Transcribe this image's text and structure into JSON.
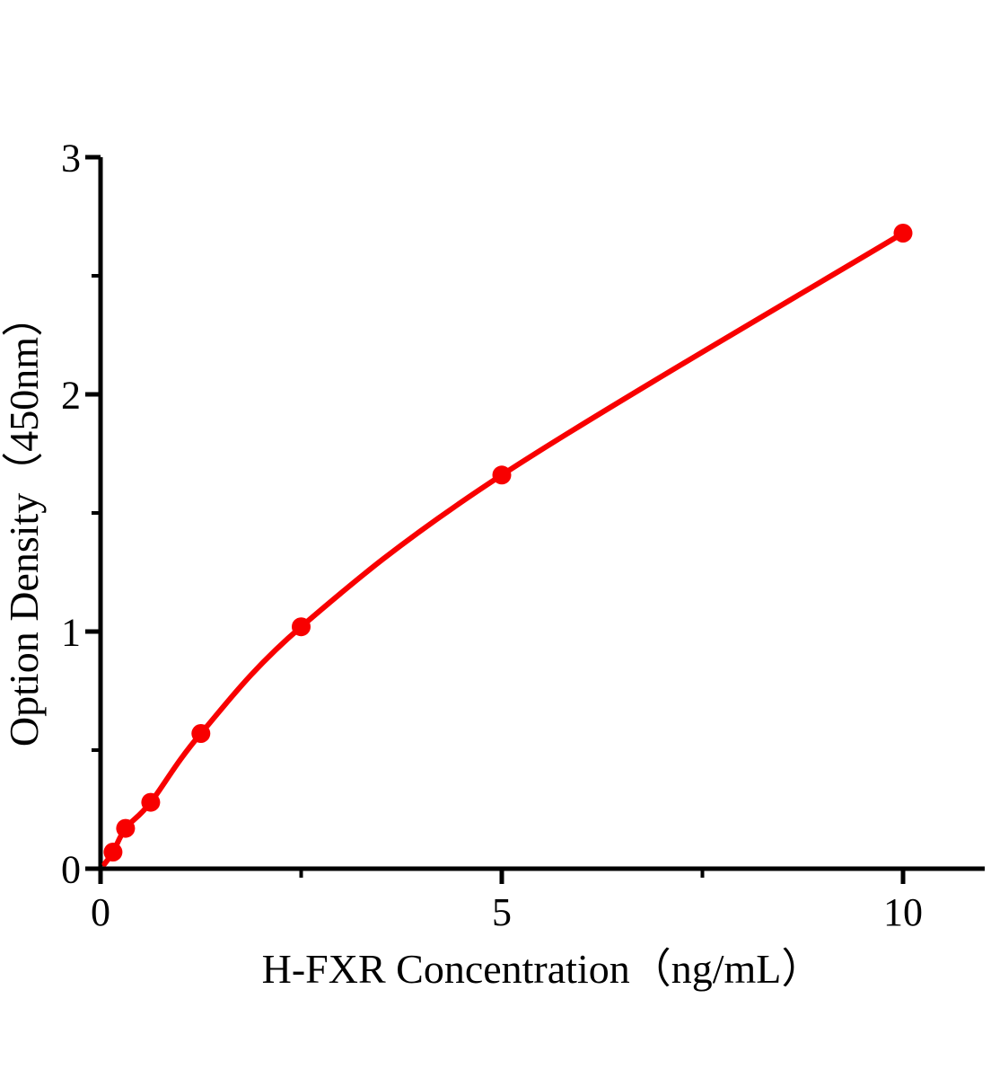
{
  "page": {
    "background": "#ffffff"
  },
  "chart_data": {
    "type": "line",
    "subtype": "scatter-with-smooth-fit-curve",
    "title": "",
    "xlabel": "H-FXR Concentration（ng/mL）",
    "ylabel": "Option Density（450nm）",
    "x": [
      0.156,
      0.3125,
      0.625,
      1.25,
      2.5,
      5,
      10
    ],
    "y": [
      0.07,
      0.17,
      0.28,
      0.57,
      1.02,
      1.66,
      2.68
    ],
    "xlim": [
      0,
      11
    ],
    "ylim": [
      0,
      3
    ],
    "x_major_ticks": [
      0,
      5,
      10
    ],
    "x_tick_labels": [
      "0",
      "5",
      "10"
    ],
    "x_minor_ticks": [
      2.5,
      7.5
    ],
    "y_major_ticks": [
      0,
      1,
      2,
      3
    ],
    "y_tick_labels": [
      "0",
      "1",
      "2",
      "3"
    ],
    "y_minor_ticks": [
      0.5,
      1.5,
      2.5
    ],
    "grid": false,
    "legend": false,
    "line_color": "#f80000",
    "marker_color": "#f80000",
    "marker": "circle",
    "axis_color": "#000000",
    "curve_starts_near_origin": true
  }
}
